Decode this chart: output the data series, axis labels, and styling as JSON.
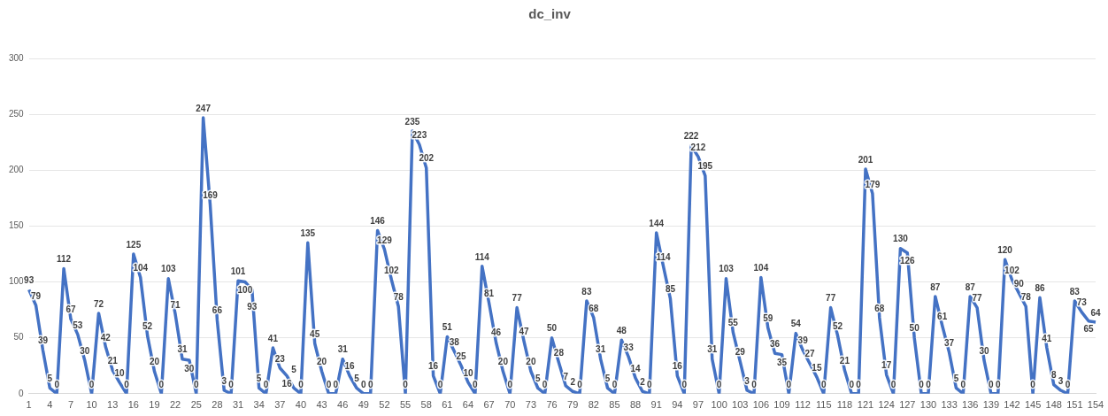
{
  "chart_data": {
    "type": "line",
    "title": "dc_inv",
    "categories": [
      "1",
      null,
      null,
      "4",
      null,
      null,
      "7",
      null,
      null,
      "10",
      null,
      null,
      "13",
      null,
      null,
      "16",
      null,
      null,
      "19",
      null,
      null,
      "22",
      null,
      null,
      "25",
      null,
      null,
      "28",
      null,
      null,
      "31",
      null,
      null,
      "34",
      null,
      null,
      "37",
      null,
      null,
      "40",
      null,
      null,
      "43",
      null,
      null,
      "46",
      null,
      null,
      "49",
      null,
      null,
      "52",
      null,
      null,
      "55",
      null,
      null,
      "58",
      null,
      null,
      "61",
      null,
      null,
      "64",
      null,
      null,
      "67",
      null,
      null,
      "70",
      null,
      null,
      "73",
      null,
      null,
      "76",
      null,
      null,
      "79",
      null,
      null,
      "82",
      null,
      null,
      "85",
      null,
      null,
      "88",
      null,
      null,
      "91",
      null,
      null,
      "94",
      null,
      null,
      "97",
      null,
      null,
      "100",
      null,
      null,
      "103",
      null,
      null,
      "106",
      null,
      null,
      "109",
      null,
      null,
      "112",
      null,
      null,
      "115",
      null,
      null,
      "118",
      null,
      null,
      "121",
      null,
      null,
      "124",
      null,
      null,
      "127",
      null,
      null,
      "130",
      null,
      null,
      "133",
      null,
      null,
      "136",
      null,
      null,
      "139",
      null,
      null,
      "142",
      null,
      null,
      "145",
      null,
      null,
      "148",
      null,
      null,
      "151",
      null,
      null,
      "154"
    ],
    "series": [
      {
        "color": "#4472c4",
        "values": [
          93,
          79,
          39,
          5,
          0,
          112,
          67,
          53,
          30,
          0,
          72,
          42,
          21,
          10,
          0,
          125,
          104,
          52,
          20,
          0,
          103,
          71,
          31,
          30,
          0,
          247,
          169,
          66,
          3,
          0,
          101,
          100,
          93,
          5,
          0,
          41,
          23,
          16,
          5,
          0,
          135,
          45,
          20,
          0,
          0,
          31,
          16,
          5,
          0,
          0,
          146,
          129,
          102,
          78,
          0,
          235,
          223,
          202,
          16,
          0,
          51,
          38,
          25,
          10,
          0,
          114,
          81,
          46,
          20,
          0,
          77,
          47,
          20,
          5,
          0,
          50,
          28,
          7,
          2,
          0,
          83,
          68,
          31,
          5,
          0,
          48,
          33,
          14,
          2,
          0,
          144,
          114,
          85,
          16,
          0,
          222,
          212,
          195,
          31,
          0,
          103,
          55,
          29,
          3,
          0,
          104,
          59,
          36,
          35,
          0,
          54,
          39,
          27,
          15,
          0,
          77,
          52,
          21,
          0,
          0,
          201,
          179,
          68,
          17,
          0,
          130,
          126,
          50,
          0,
          0,
          87,
          61,
          37,
          5,
          0,
          87,
          77,
          30,
          0,
          0,
          120,
          102,
          90,
          78,
          0,
          86,
          41,
          8,
          3,
          0,
          83,
          73,
          65,
          64
        ]
      }
    ],
    "ylim": [
      0,
      300
    ],
    "yticks": [
      0,
      50,
      100,
      150,
      200,
      250,
      300
    ],
    "grid": "y",
    "legend": false,
    "marker": "none",
    "line_style": "solid",
    "data_labels": true
  }
}
